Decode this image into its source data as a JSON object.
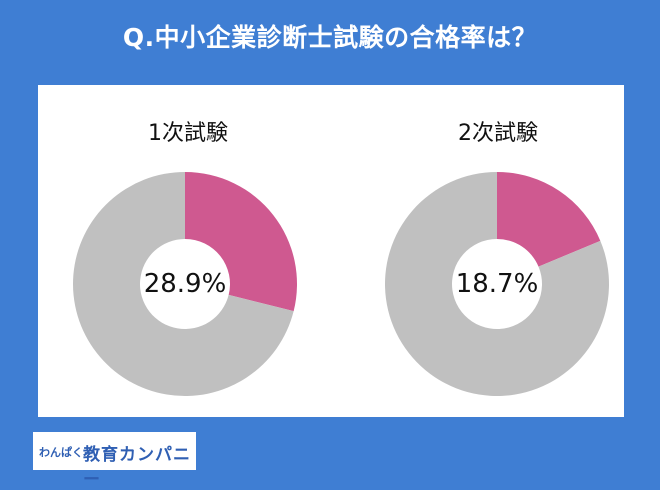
{
  "title": "Q.中小企業診断士試験の合格率は？",
  "colors": {
    "background": "#3f7ed3",
    "pass": "#cf5990",
    "rest": "#c0c0c0"
  },
  "chart_data": [
    {
      "type": "pie",
      "title": "1次試験",
      "center_label": "28.9%",
      "slices": [
        {
          "label": "",
          "value": 28.9
        },
        {
          "label": "",
          "value": 71.1
        }
      ]
    },
    {
      "type": "pie",
      "title": "2次試験",
      "center_label": "18.7%",
      "slices": [
        {
          "label": "",
          "value": 18.7
        },
        {
          "label": "",
          "value": 81.3
        }
      ]
    }
  ],
  "logo": {
    "small": "わんぱく",
    "big": "教育カンパニー"
  }
}
